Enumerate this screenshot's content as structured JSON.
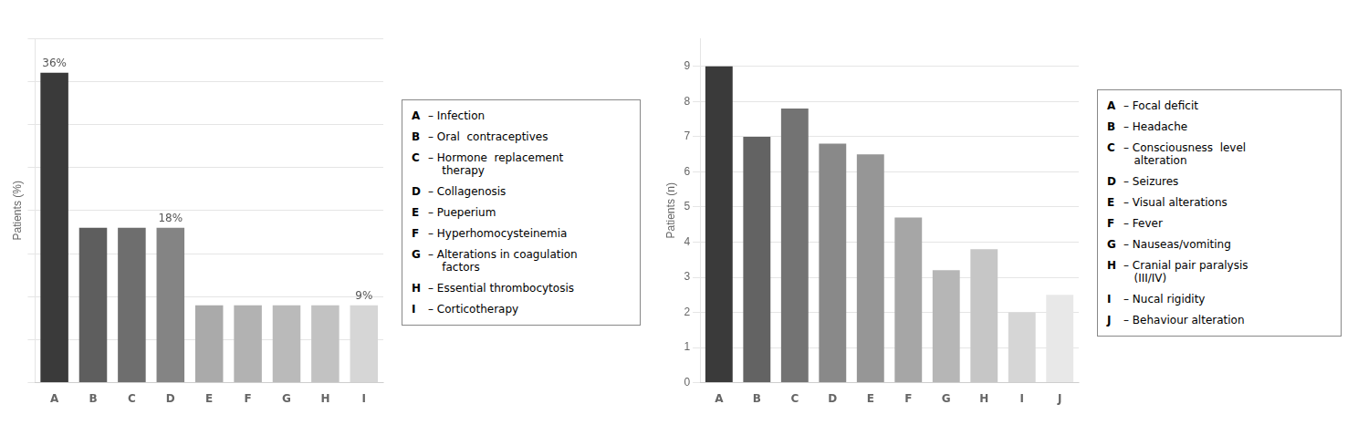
{
  "chart_data": [
    {
      "type": "bar",
      "categories": [
        "A",
        "B",
        "C",
        "D",
        "E",
        "F",
        "G",
        "H",
        "I"
      ],
      "values": [
        36,
        18,
        18,
        18,
        9,
        9,
        9,
        9,
        9
      ],
      "colors": [
        "#3a3a3a",
        "#5e5e5e",
        "#6e6e6e",
        "#848484",
        "#aaaaaa",
        "#b2b2b2",
        "#bababa",
        "#c2c2c2",
        "#d6d6d6"
      ],
      "ylabel": "Patients (%)",
      "ylim": [
        0,
        40
      ],
      "yticks": [
        0,
        5,
        10,
        15,
        20,
        25,
        30,
        35,
        40
      ],
      "grid": true,
      "tick_labels": "x",
      "data_labels": true,
      "value_labels": [
        "36%",
        null,
        null,
        "18%",
        null,
        null,
        null,
        null,
        "9%"
      ],
      "annotations": [
        {
          "label": "A",
          "text": "– Infection"
        },
        {
          "label": "B",
          "text": "– Oral  contraceptives"
        },
        {
          "label": "C",
          "text": "– Hormone  replacement\n    therapy"
        },
        {
          "label": "D",
          "text": "– Collagenosis"
        },
        {
          "label": "E",
          "text": "– Pueperium"
        },
        {
          "label": "F",
          "text": "– Hyperhomocysteinemia"
        },
        {
          "label": "G",
          "text": "– Alterations in coagulation\n    factors"
        },
        {
          "label": "H",
          "text": "– Essential thrombocytosis"
        },
        {
          "label": "I",
          "text": "– Corticotherapy"
        }
      ]
    },
    {
      "type": "bar",
      "categories": [
        "A",
        "B",
        "C",
        "D",
        "E",
        "F",
        "G",
        "H",
        "I",
        "J"
      ],
      "values": [
        9,
        7,
        7.8,
        6.8,
        6.5,
        4.7,
        3.2,
        3.8,
        2,
        2.5
      ],
      "colors": [
        "#3a3a3a",
        "#636363",
        "#737373",
        "#898989",
        "#969696",
        "#a6a6a6",
        "#b6b6b6",
        "#c6c6c6",
        "#d6d6d6",
        "#e8e8e8"
      ],
      "ylabel": "Patients (n)",
      "ylim": [
        0,
        9.8
      ],
      "yticks": [
        0,
        1,
        2,
        3,
        4,
        5,
        6,
        7,
        8,
        9
      ],
      "grid": true,
      "annotations": [
        {
          "label": "A",
          "text": "– Focal deficit"
        },
        {
          "label": "B",
          "text": "– Headache"
        },
        {
          "label": "C",
          "text": "– Consciousness  level\n   alteration"
        },
        {
          "label": "D",
          "text": "– Seizures"
        },
        {
          "label": "E",
          "text": "– Visual alterations"
        },
        {
          "label": "F",
          "text": "– Fever"
        },
        {
          "label": "G",
          "text": "– Nauseas/vomiting"
        },
        {
          "label": "H",
          "text": "– Cranial pair paralysis\n   (III/IV)"
        },
        {
          "label": "I",
          "text": "– Nucal rigidity"
        },
        {
          "label": "J",
          "text": "– Behaviour alteration"
        }
      ]
    }
  ]
}
